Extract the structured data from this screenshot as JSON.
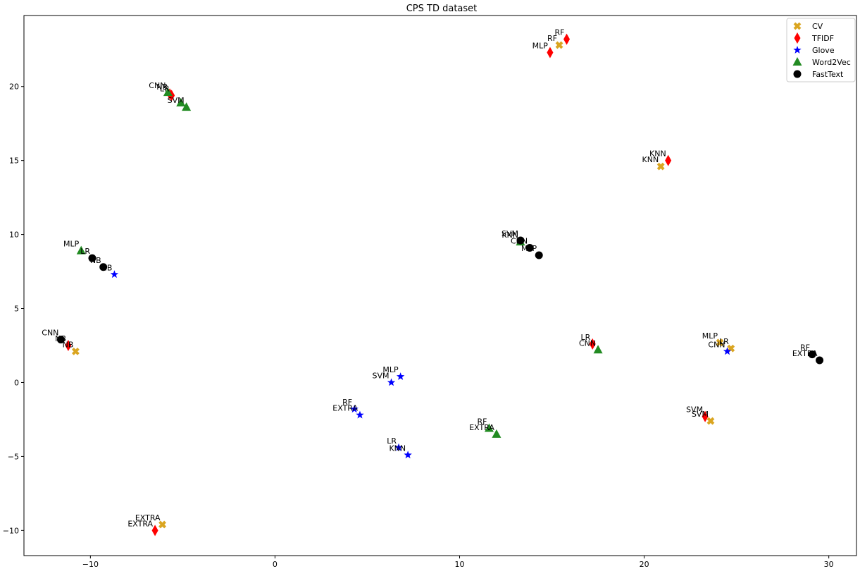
{
  "chart_data": {
    "type": "scatter",
    "title": "CPS TD dataset",
    "xlabel": "",
    "ylabel": "",
    "xlim": [
      -13.6,
      31.5
    ],
    "ylim": [
      -11.7,
      24.8
    ],
    "xticks": [
      -10,
      0,
      10,
      20,
      30
    ],
    "yticks": [
      -10,
      -5,
      0,
      5,
      10,
      15,
      20
    ],
    "grid": false,
    "legend_position": "top-right",
    "series": [
      {
        "name": "CV",
        "marker": "X",
        "color": "#daa520",
        "points": [
          {
            "x": 15.4,
            "y": 22.8,
            "label": "RF"
          },
          {
            "x": 20.9,
            "y": 14.6,
            "label": "KNN"
          },
          {
            "x": -10.8,
            "y": 2.1,
            "label": "NB"
          },
          {
            "x": 24.1,
            "y": 2.7,
            "label": "MLP"
          },
          {
            "x": 24.7,
            "y": 2.3,
            "label": "LR"
          },
          {
            "x": 23.6,
            "y": -2.6,
            "label": "SVM"
          },
          {
            "x": -6.1,
            "y": -9.6,
            "label": "EXTRA"
          }
        ]
      },
      {
        "name": "TFIDF",
        "marker": "diamond",
        "color": "#ff0000",
        "points": [
          {
            "x": 15.8,
            "y": 23.2,
            "label": "RF"
          },
          {
            "x": 14.9,
            "y": 22.3,
            "label": "MLP"
          },
          {
            "x": -5.7,
            "y": 19.5,
            "label": "NB"
          },
          {
            "x": -5.6,
            "y": 19.4,
            "label": "LR"
          },
          {
            "x": 21.3,
            "y": 15.0,
            "label": "KNN"
          },
          {
            "x": -11.2,
            "y": 2.5,
            "label": "NB"
          },
          {
            "x": 17.2,
            "y": 2.6,
            "label": "LR"
          },
          {
            "x": 23.3,
            "y": -2.3,
            "label": "SVM"
          },
          {
            "x": -6.5,
            "y": -10.0,
            "label": "EXTRA"
          }
        ]
      },
      {
        "name": "Glove",
        "marker": "star",
        "color": "#0000ff",
        "points": [
          {
            "x": -8.7,
            "y": 7.3,
            "label": "NB"
          },
          {
            "x": 6.8,
            "y": 0.4,
            "label": "MLP"
          },
          {
            "x": 6.3,
            "y": 0.0,
            "label": "SVM"
          },
          {
            "x": 4.3,
            "y": -1.8,
            "label": "RF"
          },
          {
            "x": 4.6,
            "y": -2.2,
            "label": "EXTRA"
          },
          {
            "x": 6.7,
            "y": -4.4,
            "label": "LR"
          },
          {
            "x": 7.2,
            "y": -4.9,
            "label": "KNN"
          },
          {
            "x": 24.5,
            "y": 2.1,
            "label": "CNN"
          }
        ]
      },
      {
        "name": "Word2Vec",
        "marker": "triangle",
        "color": "#228b22",
        "points": [
          {
            "x": -5.8,
            "y": 19.6,
            "label": "CNN"
          },
          {
            "x": -5.1,
            "y": 18.9,
            "label": ""
          },
          {
            "x": -4.8,
            "y": 18.6,
            "label": "SVM"
          },
          {
            "x": -10.5,
            "y": 8.9,
            "label": "MLP"
          },
          {
            "x": 13.3,
            "y": 9.5,
            "label": "KNN"
          },
          {
            "x": 17.5,
            "y": 2.2,
            "label": "CNN"
          },
          {
            "x": 11.6,
            "y": -3.1,
            "label": "RF"
          },
          {
            "x": 12.0,
            "y": -3.5,
            "label": "EXTRA"
          }
        ]
      },
      {
        "name": "FastText",
        "marker": "circle",
        "color": "#000000",
        "points": [
          {
            "x": -9.9,
            "y": 8.4,
            "label": "LR"
          },
          {
            "x": -9.3,
            "y": 7.8,
            "label": "NB"
          },
          {
            "x": -11.6,
            "y": 2.9,
            "label": "CNN"
          },
          {
            "x": 13.3,
            "y": 9.6,
            "label": "SVM"
          },
          {
            "x": 13.8,
            "y": 9.1,
            "label": "CNN"
          },
          {
            "x": 14.3,
            "y": 8.6,
            "label": "MLP"
          },
          {
            "x": 29.1,
            "y": 1.9,
            "label": "RF"
          },
          {
            "x": 29.5,
            "y": 1.5,
            "label": "EXTRA"
          }
        ]
      }
    ]
  }
}
